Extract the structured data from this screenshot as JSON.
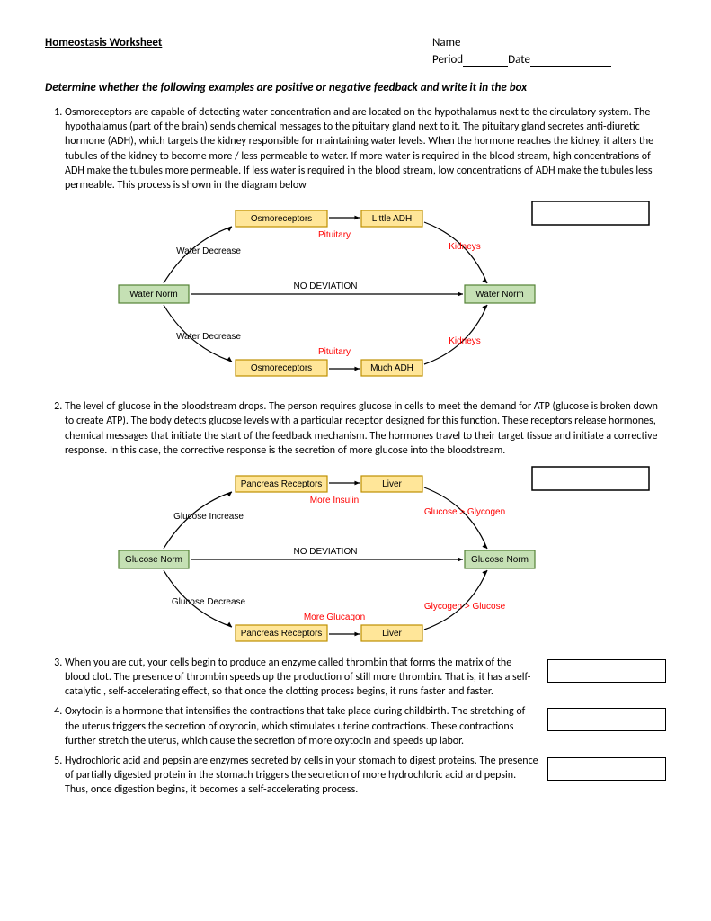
{
  "header": {
    "title": "Homeostasis Worksheet",
    "name_label": "Name",
    "period_label": "Period",
    "date_label": "Date"
  },
  "instruction": "Determine whether the following examples are positive or negative feedback and write it in the box",
  "questions": [
    {
      "text": "Osmoreceptors are capable of detecting water concentration and are located on the hypothalamus next to the circulatory system. The hypothalamus (part of the brain) sends chemical messages to the pituitary gland next to it. The pituitary gland secretes anti-diuretic hormone (ADH), which targets the kidney responsible for maintaining water levels. When the hormone reaches the kidney, it alters the tubules of the kidney to become more / less permeable to water. If more water is required in the blood stream, high concentrations of ADH make the tubules more permeable. If less water is required in the blood stream, low concentrations of ADH make the tubules less permeable. This process is shown in the diagram below"
    },
    {
      "text": "The level of glucose in the bloodstream drops. The person requires glucose in cells to meet the demand for ATP (glucose is broken down to create ATP). The body detects glucose levels with a particular receptor designed for this function. These receptors release hormones, chemical messages that initiate the start of the feedback mechanism. The hormones travel to their target tissue and initiate a corrective response. In this case, the corrective response is the secretion of more glucose into the bloodstream."
    },
    {
      "text": "When you are cut, your cells begin to produce an enzyme called thrombin that forms the matrix of the blood clot. The presence of thrombin speeds up the production of still more thrombin. That is, it has a self- catalytic , self-accelerating effect, so that once the clotting process begins, it runs faster and faster."
    },
    {
      "text": "Oxytocin is a hormone that intensifies the contractions that take place during childbirth. The stretching of the uterus triggers the secretion of oxytocin, which stimulates uterine contractions. These contractions further stretch the uterus, which cause the secretion of more oxytocin and speeds up labor."
    },
    {
      "text": "Hydrochloric acid and pepsin are enzymes secreted by cells in your stomach to digest proteins. The presence of partially digested protein in the stomach triggers the secretion of more hydrochloric acid and pepsin. Thus, once digestion begins, it becomes a self-accelerating process."
    }
  ],
  "diagram1": {
    "left_norm": "Water Norm",
    "right_norm": "Water Norm",
    "top_left": "Osmoreceptors",
    "top_right": "Little ADH",
    "bot_left": "Osmoreceptors",
    "bot_right": "Much ADH",
    "top_label1": "Water Decrease",
    "bot_label1": "Water Decrease",
    "top_mid": "Pituitary",
    "bot_mid": "Pituitary",
    "right_label": "Kidneys",
    "center": "NO DEVIATION",
    "colors": {
      "green_fill": "#c5e0b4",
      "green_stroke": "#548235",
      "yellow_fill": "#ffe699",
      "yellow_stroke": "#bf8f00",
      "red": "#ff0000",
      "black": "#000"
    }
  },
  "diagram2": {
    "left_norm": "Glucose Norm",
    "right_norm": "Glucose Norm",
    "top_left": "Pancreas Receptors",
    "top_right": "Liver",
    "bot_left": "Pancreas Receptors",
    "bot_right": "Liver",
    "top_label1": "Glucose Increase",
    "bot_label1": "Glucose Decrease",
    "top_mid": "More Insulin",
    "bot_mid": "More Glucagon",
    "right_top": "Glucose > Glycogen",
    "right_bot": "Glycogen > Glucose",
    "center": "NO DEVIATION",
    "colors": {
      "green_fill": "#c5e0b4",
      "green_stroke": "#548235",
      "yellow_fill": "#ffe699",
      "yellow_stroke": "#bf8f00",
      "red": "#ff0000",
      "black": "#000"
    }
  }
}
